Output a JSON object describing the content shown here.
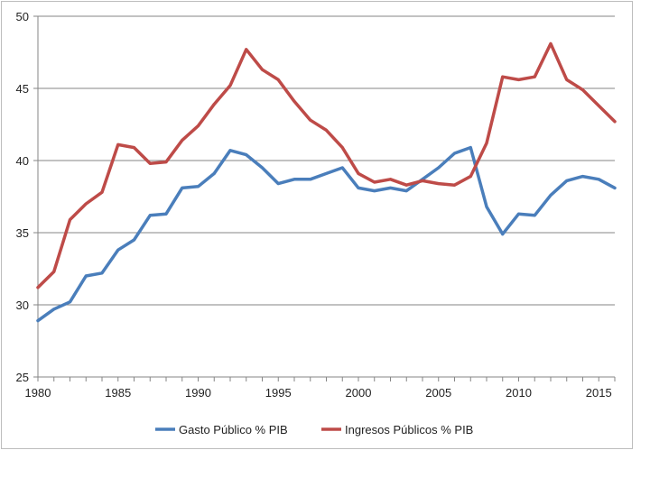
{
  "chart_data": {
    "type": "line",
    "title": "",
    "xlabel": "",
    "ylabel": "",
    "xlim": [
      1980,
      2016
    ],
    "ylim": [
      25,
      50
    ],
    "y_ticks": [
      25,
      30,
      35,
      40,
      45,
      50
    ],
    "x_ticks": [
      1980,
      1985,
      1990,
      1995,
      2000,
      2005,
      2010,
      2015
    ],
    "grid": "horizontal",
    "legend_position": "bottom",
    "x": [
      1980,
      1981,
      1982,
      1983,
      1984,
      1985,
      1986,
      1987,
      1988,
      1989,
      1990,
      1991,
      1992,
      1993,
      1994,
      1995,
      1996,
      1997,
      1998,
      1999,
      2000,
      2001,
      2002,
      2003,
      2004,
      2005,
      2006,
      2007,
      2008,
      2009,
      2010,
      2011,
      2012,
      2013,
      2014,
      2015,
      2016
    ],
    "series": [
      {
        "name": "Gasto Público % PIB",
        "color": "#4a7ebb",
        "values": [
          28.9,
          29.7,
          30.2,
          32.0,
          32.2,
          33.8,
          34.5,
          36.2,
          36.3,
          38.1,
          38.2,
          39.1,
          40.7,
          40.4,
          39.5,
          38.4,
          38.7,
          38.7,
          39.1,
          39.5,
          38.1,
          37.9,
          38.1,
          37.9,
          38.7,
          39.5,
          40.5,
          40.9,
          36.8,
          34.9,
          36.3,
          36.2,
          37.6,
          38.6,
          38.9,
          38.7,
          38.1
        ]
      },
      {
        "name": "Ingresos Públicos % PIB",
        "color": "#be4b48",
        "values": [
          31.2,
          32.3,
          35.9,
          37.0,
          37.8,
          41.1,
          40.9,
          39.8,
          39.9,
          41.4,
          42.4,
          43.9,
          45.2,
          47.7,
          46.3,
          45.6,
          44.1,
          42.8,
          42.1,
          40.9,
          39.1,
          38.5,
          38.7,
          38.3,
          38.6,
          38.4,
          38.3,
          38.9,
          41.2,
          45.8,
          45.6,
          45.8,
          48.1,
          45.6,
          44.9,
          43.8,
          42.7
        ]
      }
    ]
  }
}
